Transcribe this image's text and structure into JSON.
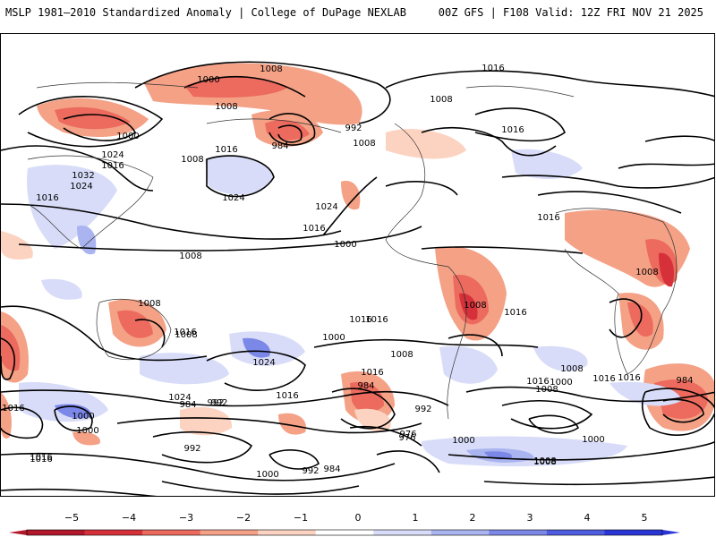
{
  "header": {
    "title_left": "MSLP 1981–2010 Standardized Anomaly | College of DuPage NEXLAB",
    "title_right": "00Z GFS | F108 Valid: 12Z FRI NOV 21 2025"
  },
  "map": {
    "field": "MSLP standardized anomaly",
    "contour_variable": "MSLP (hPa)",
    "isobar_labels": [
      "1008",
      "1000",
      "1008",
      "1000",
      "992",
      "1008",
      "984",
      "1016",
      "1008",
      "1024",
      "1016",
      "1016",
      "1008",
      "1016",
      "1032",
      "1024",
      "1016",
      "1024",
      "1024",
      "1016",
      "1016",
      "1008",
      "1000",
      "1016",
      "1016",
      "1008",
      "1016",
      "1008",
      "1024",
      "1000",
      "1016",
      "1008",
      "1008",
      "1016",
      "1008",
      "1016",
      "1024",
      "1016",
      "1000",
      "1016",
      "1008",
      "1016",
      "1000",
      "992",
      "984",
      "984",
      "992",
      "976",
      "992",
      "976",
      "1000",
      "1000",
      "992",
      "1008",
      "984",
      "1016",
      "992",
      "984",
      "1000",
      "1008",
      "1016",
      "1000",
      "1008",
      "1016"
    ]
  },
  "colorbar": {
    "ticks": [
      "−5",
      "−4",
      "−3",
      "−2",
      "−1",
      "0",
      "1",
      "2",
      "3",
      "4",
      "5"
    ],
    "colors": [
      "#b2182b",
      "#d6313a",
      "#ec6a5e",
      "#f4a186",
      "#fcd3c1",
      "#ffffff",
      "#d8dcf8",
      "#aab4f0",
      "#7c88e8",
      "#4e5ce0",
      "#2a35d8"
    ]
  }
}
